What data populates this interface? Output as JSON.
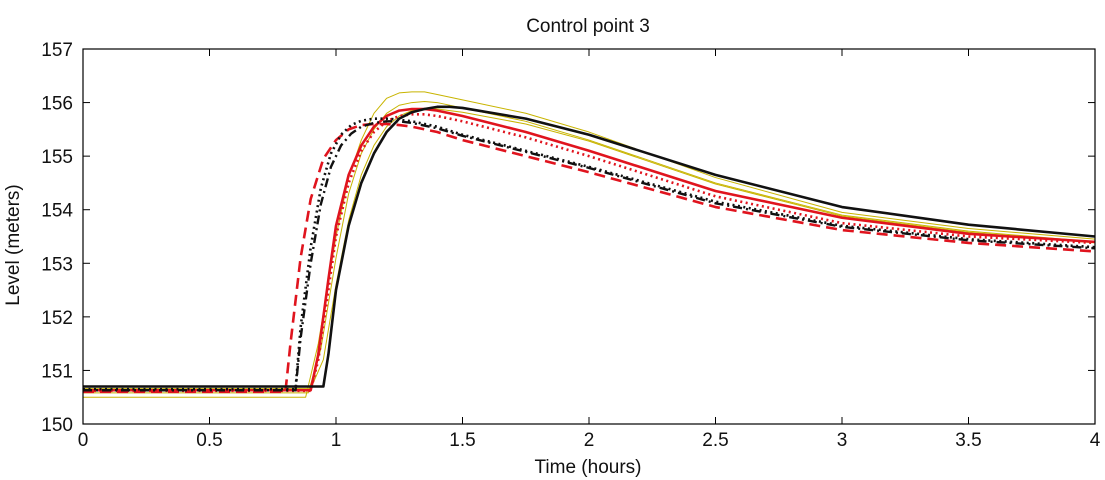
{
  "chart_data": {
    "type": "line",
    "title": "Control point 3",
    "xlabel": "Time (hours)",
    "ylabel": "Level (meters)",
    "xlim": [
      0,
      4
    ],
    "ylim": [
      150,
      157
    ],
    "x_ticks": [
      0,
      0.5,
      1,
      1.5,
      2,
      2.5,
      3,
      3.5,
      4
    ],
    "y_ticks": [
      150,
      151,
      152,
      153,
      154,
      155,
      156,
      157
    ],
    "x_tick_labels": [
      "0",
      "0.5",
      "1",
      "1.5",
      "2",
      "2.5",
      "3",
      "3.5",
      "4"
    ],
    "y_tick_labels": [
      "150",
      "151",
      "152",
      "153",
      "154",
      "155",
      "156",
      "157"
    ],
    "grid": false,
    "series": [
      {
        "color": "#c8b400",
        "style": "solid",
        "width": 1,
        "x": [
          0,
          0.88,
          0.93,
          1.0,
          1.05,
          1.1,
          1.15,
          1.2,
          1.25,
          1.3,
          1.35,
          1.4,
          1.5,
          1.75,
          2.0,
          2.5,
          3.0,
          3.5,
          4.0
        ],
        "y": [
          150.5,
          150.5,
          151.5,
          153.5,
          154.6,
          155.3,
          155.8,
          156.08,
          156.18,
          156.2,
          156.2,
          156.15,
          156.05,
          155.8,
          155.45,
          154.6,
          153.95,
          153.65,
          153.45
        ]
      },
      {
        "color": "#c8b400",
        "style": "solid",
        "width": 1,
        "x": [
          0,
          0.89,
          0.94,
          1.0,
          1.05,
          1.1,
          1.15,
          1.2,
          1.25,
          1.3,
          1.35,
          1.4,
          1.5,
          1.75,
          2.0,
          2.5,
          3.0,
          3.5,
          4.0
        ],
        "y": [
          150.58,
          150.58,
          151.4,
          153.1,
          154.3,
          155.05,
          155.5,
          155.8,
          155.95,
          156.0,
          156.02,
          156.0,
          155.9,
          155.65,
          155.3,
          154.5,
          153.9,
          153.6,
          153.4
        ]
      },
      {
        "color": "#c8b400",
        "style": "solid",
        "width": 1,
        "x": [
          0,
          0.9,
          0.95,
          1.0,
          1.05,
          1.1,
          1.15,
          1.2,
          1.25,
          1.3,
          1.35,
          1.4,
          1.5,
          1.75,
          2.0,
          2.5,
          3.0,
          3.5,
          4.0
        ],
        "y": [
          150.66,
          150.66,
          151.2,
          152.6,
          153.8,
          154.65,
          155.2,
          155.55,
          155.75,
          155.85,
          155.88,
          155.88,
          155.82,
          155.6,
          155.28,
          154.48,
          153.88,
          153.58,
          153.38
        ]
      },
      {
        "color": "#e0141e",
        "style": "solid",
        "width": 2.6,
        "x": [
          0,
          0.9,
          0.93,
          0.97,
          1.0,
          1.05,
          1.1,
          1.15,
          1.2,
          1.25,
          1.3,
          1.35,
          1.4,
          1.5,
          1.75,
          2.0,
          2.5,
          3.0,
          3.5,
          4.0
        ],
        "y": [
          150.63,
          150.63,
          151.3,
          152.7,
          153.7,
          154.65,
          155.2,
          155.55,
          155.75,
          155.85,
          155.88,
          155.88,
          155.85,
          155.75,
          155.45,
          155.1,
          154.35,
          153.85,
          153.55,
          153.4
        ]
      },
      {
        "color": "#e0141e",
        "style": "dotted",
        "width": 2.6,
        "x": [
          0,
          0.9,
          0.93,
          0.97,
          1.0,
          1.05,
          1.1,
          1.15,
          1.2,
          1.25,
          1.3,
          1.35,
          1.4,
          1.5,
          1.75,
          2.0,
          2.5,
          3.0,
          3.5,
          4.0
        ],
        "y": [
          150.62,
          150.62,
          151.2,
          152.5,
          153.5,
          154.5,
          155.1,
          155.45,
          155.65,
          155.75,
          155.78,
          155.78,
          155.75,
          155.65,
          155.35,
          155.0,
          154.25,
          153.75,
          153.5,
          153.38
        ]
      },
      {
        "color": "#e0141e",
        "style": "dashed",
        "width": 2.6,
        "x": [
          0,
          0.8,
          0.82,
          0.86,
          0.9,
          0.95,
          1.0,
          1.05,
          1.1,
          1.15,
          1.2,
          1.25,
          1.3,
          1.4,
          1.5,
          1.75,
          2.0,
          2.5,
          3.0,
          3.5,
          4.0
        ],
        "y": [
          150.6,
          150.6,
          151.5,
          153.1,
          154.2,
          154.95,
          155.3,
          155.5,
          155.58,
          155.6,
          155.6,
          155.58,
          155.55,
          155.45,
          155.3,
          155.0,
          154.7,
          154.05,
          153.62,
          153.38,
          153.22
        ]
      },
      {
        "color": "#111111",
        "style": "solid",
        "width": 2.6,
        "x": [
          0,
          0.95,
          0.97,
          1.0,
          1.05,
          1.1,
          1.15,
          1.2,
          1.25,
          1.3,
          1.35,
          1.4,
          1.45,
          1.5,
          1.75,
          2.0,
          2.5,
          3.0,
          3.5,
          4.0
        ],
        "y": [
          150.7,
          150.7,
          151.3,
          152.5,
          153.7,
          154.5,
          155.05,
          155.45,
          155.7,
          155.82,
          155.88,
          155.92,
          155.92,
          155.9,
          155.7,
          155.4,
          154.65,
          154.05,
          153.72,
          153.5
        ]
      },
      {
        "color": "#111111",
        "style": "dotted",
        "width": 2.6,
        "x": [
          0,
          0.84,
          0.86,
          0.9,
          0.94,
          0.98,
          1.02,
          1.06,
          1.1,
          1.15,
          1.2,
          1.25,
          1.3,
          1.4,
          1.5,
          1.75,
          2.0,
          2.5,
          3.0,
          3.5,
          4.0
        ],
        "y": [
          150.65,
          150.65,
          151.8,
          153.3,
          154.4,
          155.05,
          155.4,
          155.58,
          155.66,
          155.7,
          155.7,
          155.68,
          155.65,
          155.55,
          155.4,
          155.1,
          154.8,
          154.15,
          153.7,
          153.45,
          153.3
        ]
      },
      {
        "color": "#111111",
        "style": "dashdot",
        "width": 2.4,
        "x": [
          0,
          0.84,
          0.86,
          0.9,
          0.94,
          0.98,
          1.02,
          1.06,
          1.1,
          1.15,
          1.2,
          1.25,
          1.3,
          1.4,
          1.5,
          1.75,
          2.0,
          2.5,
          3.0,
          3.5,
          4.0
        ],
        "y": [
          150.63,
          150.63,
          151.6,
          153.0,
          154.1,
          154.8,
          155.2,
          155.42,
          155.55,
          155.62,
          155.65,
          155.65,
          155.62,
          155.52,
          155.38,
          155.08,
          154.78,
          154.12,
          153.68,
          153.43,
          153.28
        ]
      }
    ]
  }
}
